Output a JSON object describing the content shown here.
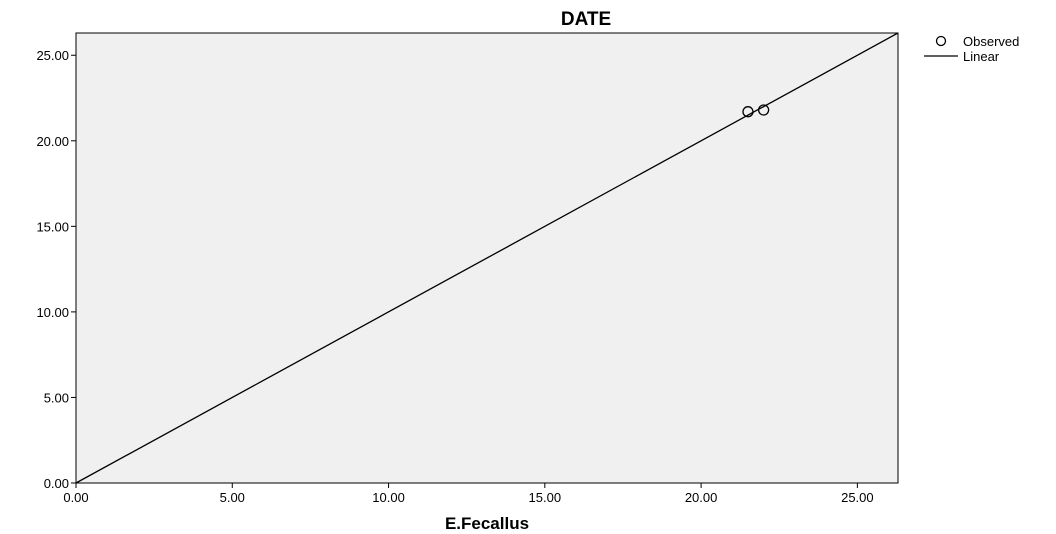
{
  "chart_data": {
    "type": "scatter",
    "title": "DATE",
    "xlabel": "E.Fecallus",
    "ylabel": "",
    "xlim": [
      0,
      26.3
    ],
    "ylim": [
      0,
      26.3
    ],
    "x_ticks": [
      "0.00",
      "5.00",
      "10.00",
      "15.00",
      "20.00",
      "25.00"
    ],
    "y_ticks": [
      "0.00",
      "5.00",
      "10.00",
      "15.00",
      "20.00",
      "25.00"
    ],
    "grid": false,
    "legend_position": "top-right",
    "series": [
      {
        "name": "Observed",
        "kind": "points",
        "x": [
          21.5,
          22.0
        ],
        "y": [
          21.7,
          21.8
        ]
      },
      {
        "name": "Linear",
        "kind": "line",
        "x": [
          0,
          26.3
        ],
        "y": [
          0,
          26.3
        ]
      }
    ],
    "colors": {
      "plot_background": "#f0f0f0",
      "axis": "#000000",
      "series": "#000000"
    }
  }
}
